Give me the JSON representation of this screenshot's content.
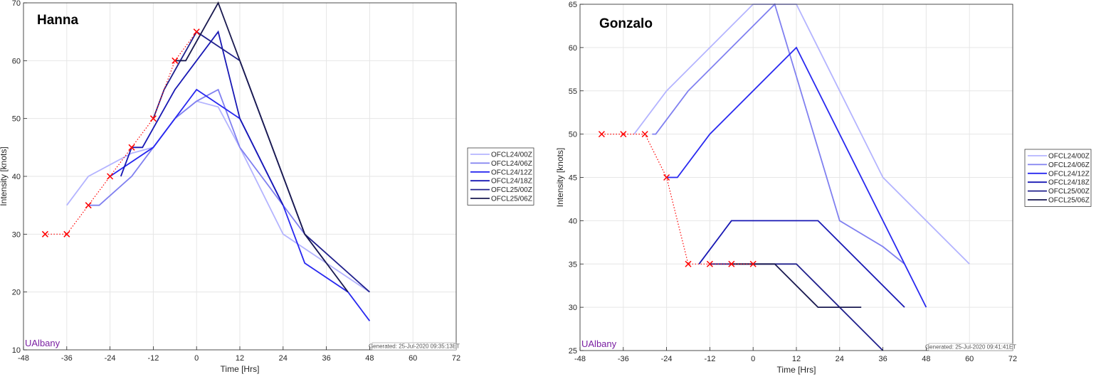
{
  "chart_data": [
    {
      "type": "line",
      "title": "Hanna",
      "xlabel": "Time [Hrs]",
      "ylabel": "Intensity [knots]",
      "xlim": [
        -48,
        72
      ],
      "ylim": [
        10,
        70
      ],
      "xticks": [
        -48,
        -36,
        -24,
        -12,
        0,
        12,
        24,
        36,
        48,
        60,
        72
      ],
      "yticks": [
        10,
        20,
        30,
        40,
        50,
        60,
        70
      ],
      "grid": true,
      "legend_position": "right",
      "credit": "UAlbany",
      "generated": "Generated: 25-Jul-2020 09:35:13ET",
      "series": [
        {
          "name": "OFCL24/00Z",
          "color": "#b4b4ff",
          "x": [
            -36,
            -30,
            -24,
            -18,
            -12,
            -6,
            0,
            6,
            12,
            24,
            36,
            48
          ],
          "y": [
            35,
            40,
            42,
            44,
            45,
            50,
            53,
            52,
            45,
            30,
            25,
            20
          ]
        },
        {
          "name": "OFCL24/06Z",
          "color": "#8080f0",
          "x": [
            -30,
            -27,
            -18,
            -12,
            -6,
            0,
            6,
            12,
            24,
            36
          ],
          "y": [
            35,
            35,
            40,
            45,
            50,
            53,
            55,
            45,
            35,
            25
          ]
        },
        {
          "name": "OFCL24/12Z",
          "color": "#2828f0",
          "x": [
            -24,
            -12,
            -6,
            0,
            12,
            24,
            30,
            42,
            48
          ],
          "y": [
            40,
            45,
            50,
            55,
            50,
            35,
            25,
            20,
            15
          ]
        },
        {
          "name": "OFCL24/18Z",
          "color": "#1818b4",
          "x": [
            -21,
            -18,
            -15,
            -6,
            6,
            12,
            24
          ],
          "y": [
            40,
            45,
            45,
            55,
            65,
            50,
            35
          ]
        },
        {
          "name": "OFCL25/00Z",
          "color": "#20208c",
          "x": [
            -12,
            -9,
            0,
            12,
            30,
            48
          ],
          "y": [
            50,
            55,
            65,
            60,
            30,
            20
          ]
        },
        {
          "name": "OFCL25/06Z",
          "color": "#1a1a50",
          "x": [
            -6,
            -3,
            6,
            12,
            30,
            42
          ],
          "y": [
            60,
            60,
            70,
            60,
            30,
            20
          ]
        }
      ],
      "observed": {
        "color": "#ff0000",
        "x": [
          -42,
          -36,
          -30,
          -24,
          -18,
          -12,
          -6,
          0
        ],
        "y": [
          30,
          30,
          35,
          40,
          45,
          50,
          60,
          65
        ]
      }
    },
    {
      "type": "line",
      "title": "Gonzalo",
      "xlabel": "Time [Hrs]",
      "ylabel": "Intensity [knots]",
      "xlim": [
        -48,
        72
      ],
      "ylim": [
        25,
        65
      ],
      "xticks": [
        -48,
        -36,
        -24,
        -12,
        0,
        12,
        24,
        36,
        48,
        60,
        72
      ],
      "yticks": [
        25,
        30,
        35,
        40,
        45,
        50,
        55,
        60,
        65
      ],
      "grid": true,
      "legend_position": "right",
      "credit": "UAlbany",
      "generated": "Generated: 25-Jul-2020 09:41:41ET",
      "series": [
        {
          "name": "OFCL24/00Z",
          "color": "#b4b4ff",
          "x": [
            -33,
            -24,
            0,
            12,
            36,
            60
          ],
          "y": [
            50,
            55,
            65,
            65,
            45,
            35
          ]
        },
        {
          "name": "OFCL24/06Z",
          "color": "#8080f0",
          "x": [
            -28,
            -27,
            -18,
            6,
            24,
            36,
            42
          ],
          "y": [
            50,
            50,
            55,
            65,
            40,
            37,
            35
          ]
        },
        {
          "name": "OFCL24/12Z",
          "color": "#2828f0",
          "x": [
            -24,
            -21,
            -12,
            12,
            48
          ],
          "y": [
            45,
            45,
            50,
            60,
            30
          ]
        },
        {
          "name": "OFCL24/18Z",
          "color": "#1818b4",
          "x": [
            -15,
            -6,
            12,
            18,
            42
          ],
          "y": [
            35,
            40,
            40,
            40,
            30
          ]
        },
        {
          "name": "OFCL25/00Z",
          "color": "#20208c",
          "x": [
            -12,
            12,
            36
          ],
          "y": [
            35,
            35,
            25
          ]
        },
        {
          "name": "OFCL25/06Z",
          "color": "#1a1a50",
          "x": [
            -6,
            6,
            18,
            30
          ],
          "y": [
            35,
            35,
            30,
            30
          ]
        }
      ],
      "observed": {
        "color": "#ff0000",
        "x": [
          -42,
          -36,
          -30,
          -24,
          -18,
          -12,
          -6,
          0
        ],
        "y": [
          50,
          50,
          50,
          45,
          35,
          35,
          35,
          35
        ]
      }
    }
  ]
}
